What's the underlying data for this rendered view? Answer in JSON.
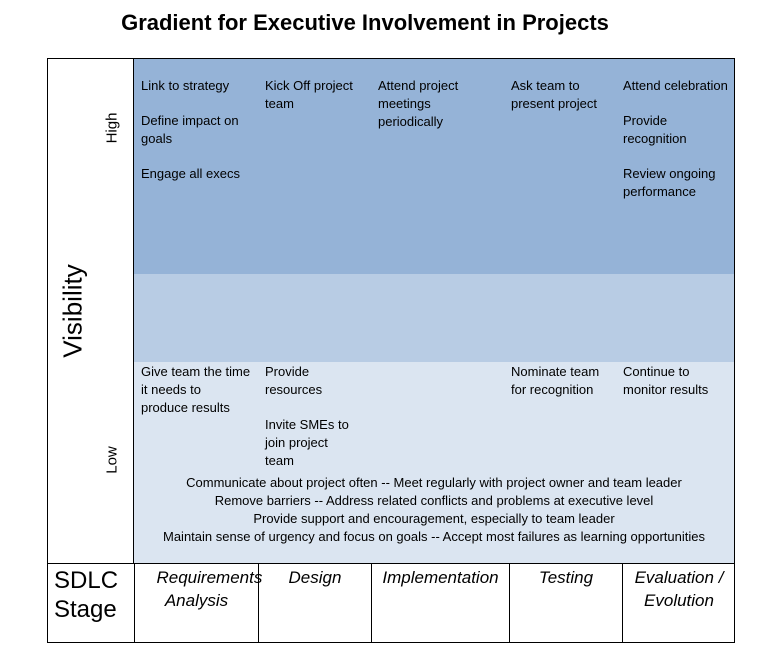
{
  "title": "Gradient for Executive Involvement in Projects",
  "axis": {
    "y_label": "Visibility",
    "high": "High",
    "low": "Low",
    "x_label_line1": "SDLC",
    "x_label_line2": "Stage"
  },
  "high_row": [
    [
      "Link to strategy",
      "Define impact on goals",
      "Engage all execs"
    ],
    [
      "Kick Off project team"
    ],
    [
      "Attend project meetings periodically"
    ],
    [
      "Ask team to present project"
    ],
    [
      "Attend celebration",
      "Provide recognition",
      "Review ongoing performance"
    ]
  ],
  "low_row": [
    [
      "Give team the time it needs to produce results"
    ],
    [
      "Provide resources",
      "Invite SMEs to join project team"
    ],
    [],
    [
      "Nominate team for recognition"
    ],
    [
      "Continue to monitor results"
    ]
  ],
  "all_stages": [
    "Communicate about project often  --  Meet regularly with project owner and team leader",
    "Remove barriers  --  Address related conflicts and problems at executive level",
    "Provide support and encouragement, especially to team leader",
    "Maintain sense of urgency and focus on goals  --  Accept most failures as learning opportunities"
  ],
  "stages": [
    "Requirements Analysis",
    "Design",
    "Implementation",
    "Testing",
    "Evaluation / Evolution"
  ]
}
